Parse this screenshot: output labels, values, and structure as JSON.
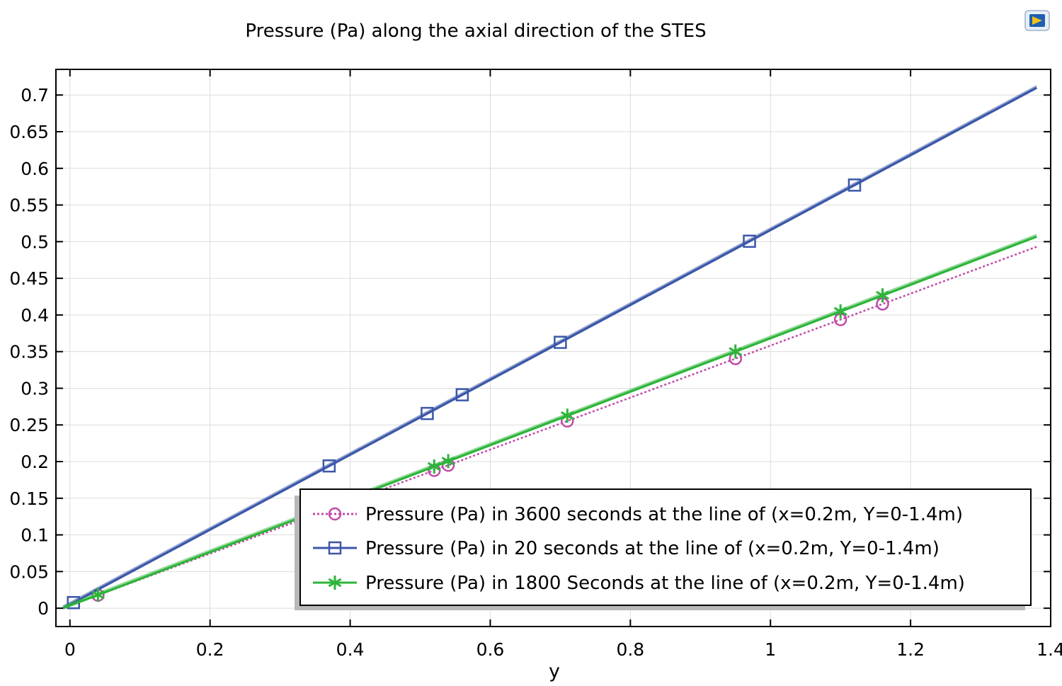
{
  "chart_data": {
    "type": "line",
    "title": "Pressure (Pa) along the axial direction of the STES",
    "xlabel": "y",
    "ylabel": "",
    "xlim": [
      -0.02,
      1.4
    ],
    "ylim": [
      -0.025,
      0.735
    ],
    "x_ticks": [
      0,
      0.2,
      0.4,
      0.6,
      0.8,
      1,
      1.2,
      1.4
    ],
    "x_tick_labels": [
      "0",
      "0.2",
      "0.4",
      "0.6",
      "0.8",
      "1",
      "1.2",
      "1.4"
    ],
    "y_ticks": [
      0,
      0.05,
      0.1,
      0.15,
      0.2,
      0.25,
      0.3,
      0.35,
      0.4,
      0.45,
      0.5,
      0.55,
      0.6,
      0.65,
      0.7
    ],
    "y_tick_labels": [
      "0",
      "0.05",
      "0.1",
      "0.15",
      "0.2",
      "0.25",
      "0.3",
      "0.35",
      "0.4",
      "0.45",
      "0.5",
      "0.55",
      "0.6",
      "0.65",
      "0.7"
    ],
    "grid": true,
    "legend_position": "bottom-right",
    "series": [
      {
        "name": "Pressure (Pa) in 3600 seconds at the line of (x=0.2m, Y=0-1.4m)",
        "color": "#c04aa8",
        "line_style": "dotted",
        "marker": "circle",
        "x": [
          -0.01,
          1.38
        ],
        "y": [
          0,
          0.493
        ],
        "marker_x": [
          0.04,
          0.52,
          0.54,
          0.71,
          0.95,
          1.1,
          1.16
        ]
      },
      {
        "name": "Pressure (Pa) in 20 seconds at the line of (x=0.2m, Y=0-1.4m)",
        "color": "#3b57a8",
        "line_style": "solid",
        "marker": "square",
        "x": [
          -0.01,
          1.38
        ],
        "y": [
          0,
          0.71
        ],
        "marker_x": [
          0.005,
          0.37,
          0.51,
          0.56,
          0.7,
          0.97,
          1.12
        ]
      },
      {
        "name": "Pressure (Pa) in 1800 Seconds  at the line of (x=0.2m, Y=0-1.4m)",
        "color": "#2db53a",
        "line_style": "solid",
        "marker": "asterisk",
        "x": [
          -0.01,
          1.38
        ],
        "y": [
          0,
          0.507
        ],
        "marker_x": [
          0.04,
          0.52,
          0.54,
          0.71,
          0.95,
          1.1,
          1.16
        ]
      }
    ]
  },
  "window": {
    "logo_icon": "app-logo-icon"
  }
}
